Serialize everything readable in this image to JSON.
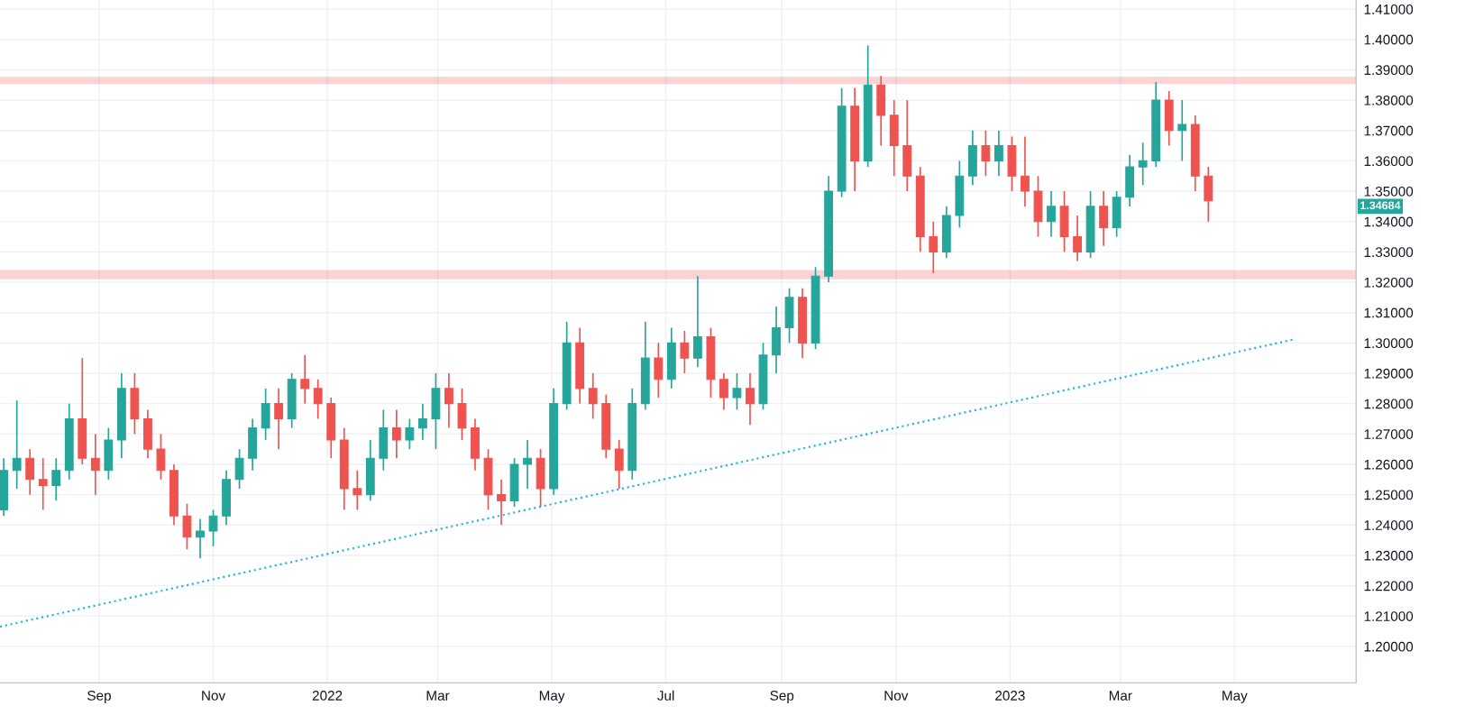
{
  "chart_data": {
    "type": "candlestick",
    "x": [
      "2021-07-12",
      "2021-07-19",
      "2021-07-26",
      "2021-08-02",
      "2021-08-09",
      "2021-08-16",
      "2021-08-23",
      "2021-08-30",
      "2021-09-06",
      "2021-09-13",
      "2021-09-20",
      "2021-09-27",
      "2021-10-04",
      "2021-10-11",
      "2021-10-18",
      "2021-10-25",
      "2021-11-01",
      "2021-11-08",
      "2021-11-15",
      "2021-11-22",
      "2021-11-29",
      "2021-12-06",
      "2021-12-13",
      "2021-12-20",
      "2021-12-27",
      "2022-01-03",
      "2022-01-10",
      "2022-01-17",
      "2022-01-24",
      "2022-01-31",
      "2022-02-07",
      "2022-02-14",
      "2022-02-21",
      "2022-02-28",
      "2022-03-07",
      "2022-03-14",
      "2022-03-21",
      "2022-03-28",
      "2022-04-04",
      "2022-04-11",
      "2022-04-18",
      "2022-04-25",
      "2022-05-02",
      "2022-05-09",
      "2022-05-16",
      "2022-05-23",
      "2022-05-30",
      "2022-06-06",
      "2022-06-13",
      "2022-06-20",
      "2022-06-27",
      "2022-07-04",
      "2022-07-11",
      "2022-07-18",
      "2022-07-25",
      "2022-08-01",
      "2022-08-08",
      "2022-08-15",
      "2022-08-22",
      "2022-08-29",
      "2022-09-05",
      "2022-09-12",
      "2022-09-19",
      "2022-09-26",
      "2022-10-03",
      "2022-10-10",
      "2022-10-17",
      "2022-10-24",
      "2022-10-31",
      "2022-11-07",
      "2022-11-14",
      "2022-11-21",
      "2022-11-28",
      "2022-12-05",
      "2022-12-12",
      "2022-12-19",
      "2022-12-26",
      "2023-01-02",
      "2023-01-09",
      "2023-01-16",
      "2023-01-23",
      "2023-01-30",
      "2023-02-06",
      "2023-02-13",
      "2023-02-20",
      "2023-02-27",
      "2023-03-06",
      "2023-03-13",
      "2023-03-20",
      "2023-03-27",
      "2023-04-03",
      "2023-04-10",
      "2023-04-17"
    ],
    "ohlc": [
      [
        1.245,
        1.262,
        1.243,
        1.258
      ],
      [
        1.258,
        1.281,
        1.252,
        1.262
      ],
      [
        1.262,
        1.265,
        1.25,
        1.255
      ],
      [
        1.255,
        1.262,
        1.245,
        1.253
      ],
      [
        1.253,
        1.262,
        1.248,
        1.258
      ],
      [
        1.258,
        1.28,
        1.255,
        1.275
      ],
      [
        1.275,
        1.295,
        1.26,
        1.262
      ],
      [
        1.262,
        1.27,
        1.25,
        1.258
      ],
      [
        1.258,
        1.272,
        1.255,
        1.268
      ],
      [
        1.268,
        1.29,
        1.262,
        1.285
      ],
      [
        1.285,
        1.29,
        1.27,
        1.275
      ],
      [
        1.275,
        1.278,
        1.262,
        1.265
      ],
      [
        1.265,
        1.27,
        1.255,
        1.258
      ],
      [
        1.258,
        1.26,
        1.24,
        1.243
      ],
      [
        1.243,
        1.247,
        1.232,
        1.236
      ],
      [
        1.236,
        1.242,
        1.229,
        1.238
      ],
      [
        1.238,
        1.245,
        1.233,
        1.243
      ],
      [
        1.243,
        1.258,
        1.24,
        1.255
      ],
      [
        1.255,
        1.265,
        1.252,
        1.262
      ],
      [
        1.262,
        1.275,
        1.258,
        1.272
      ],
      [
        1.272,
        1.285,
        1.268,
        1.28
      ],
      [
        1.28,
        1.285,
        1.265,
        1.275
      ],
      [
        1.275,
        1.29,
        1.272,
        1.288
      ],
      [
        1.288,
        1.296,
        1.28,
        1.285
      ],
      [
        1.285,
        1.288,
        1.275,
        1.28
      ],
      [
        1.28,
        1.282,
        1.262,
        1.268
      ],
      [
        1.268,
        1.272,
        1.245,
        1.252
      ],
      [
        1.252,
        1.258,
        1.245,
        1.25
      ],
      [
        1.25,
        1.268,
        1.248,
        1.262
      ],
      [
        1.262,
        1.278,
        1.258,
        1.272
      ],
      [
        1.272,
        1.278,
        1.262,
        1.268
      ],
      [
        1.268,
        1.275,
        1.265,
        1.272
      ],
      [
        1.272,
        1.28,
        1.268,
        1.275
      ],
      [
        1.275,
        1.29,
        1.265,
        1.285
      ],
      [
        1.285,
        1.29,
        1.272,
        1.28
      ],
      [
        1.28,
        1.285,
        1.268,
        1.272
      ],
      [
        1.272,
        1.275,
        1.258,
        1.262
      ],
      [
        1.262,
        1.265,
        1.245,
        1.25
      ],
      [
        1.25,
        1.255,
        1.24,
        1.248
      ],
      [
        1.248,
        1.262,
        1.246,
        1.26
      ],
      [
        1.26,
        1.268,
        1.252,
        1.262
      ],
      [
        1.262,
        1.265,
        1.246,
        1.252
      ],
      [
        1.252,
        1.285,
        1.25,
        1.28
      ],
      [
        1.28,
        1.307,
        1.278,
        1.3
      ],
      [
        1.3,
        1.305,
        1.28,
        1.285
      ],
      [
        1.285,
        1.29,
        1.275,
        1.28
      ],
      [
        1.28,
        1.283,
        1.262,
        1.265
      ],
      [
        1.265,
        1.268,
        1.252,
        1.258
      ],
      [
        1.258,
        1.285,
        1.255,
        1.28
      ],
      [
        1.28,
        1.307,
        1.278,
        1.295
      ],
      [
        1.295,
        1.3,
        1.282,
        1.288
      ],
      [
        1.288,
        1.305,
        1.285,
        1.3
      ],
      [
        1.3,
        1.304,
        1.29,
        1.295
      ],
      [
        1.295,
        1.322,
        1.292,
        1.302
      ],
      [
        1.302,
        1.305,
        1.282,
        1.288
      ],
      [
        1.288,
        1.29,
        1.278,
        1.282
      ],
      [
        1.282,
        1.29,
        1.278,
        1.285
      ],
      [
        1.285,
        1.29,
        1.273,
        1.28
      ],
      [
        1.28,
        1.3,
        1.278,
        1.296
      ],
      [
        1.296,
        1.312,
        1.29,
        1.305
      ],
      [
        1.305,
        1.318,
        1.3,
        1.315
      ],
      [
        1.315,
        1.318,
        1.295,
        1.3
      ],
      [
        1.3,
        1.325,
        1.298,
        1.322
      ],
      [
        1.322,
        1.355,
        1.32,
        1.35
      ],
      [
        1.35,
        1.384,
        1.348,
        1.378
      ],
      [
        1.378,
        1.384,
        1.35,
        1.36
      ],
      [
        1.36,
        1.398,
        1.358,
        1.385
      ],
      [
        1.385,
        1.388,
        1.365,
        1.375
      ],
      [
        1.375,
        1.38,
        1.355,
        1.365
      ],
      [
        1.365,
        1.38,
        1.35,
        1.355
      ],
      [
        1.355,
        1.358,
        1.33,
        1.335
      ],
      [
        1.335,
        1.34,
        1.323,
        1.33
      ],
      [
        1.33,
        1.345,
        1.328,
        1.342
      ],
      [
        1.342,
        1.36,
        1.338,
        1.355
      ],
      [
        1.355,
        1.37,
        1.352,
        1.365
      ],
      [
        1.365,
        1.37,
        1.355,
        1.36
      ],
      [
        1.36,
        1.37,
        1.355,
        1.365
      ],
      [
        1.365,
        1.368,
        1.35,
        1.355
      ],
      [
        1.355,
        1.368,
        1.345,
        1.35
      ],
      [
        1.35,
        1.355,
        1.335,
        1.34
      ],
      [
        1.34,
        1.35,
        1.335,
        1.345
      ],
      [
        1.345,
        1.35,
        1.33,
        1.335
      ],
      [
        1.335,
        1.342,
        1.327,
        1.33
      ],
      [
        1.33,
        1.35,
        1.328,
        1.345
      ],
      [
        1.345,
        1.35,
        1.332,
        1.338
      ],
      [
        1.338,
        1.35,
        1.335,
        1.348
      ],
      [
        1.348,
        1.362,
        1.345,
        1.358
      ],
      [
        1.358,
        1.366,
        1.352,
        1.36
      ],
      [
        1.36,
        1.386,
        1.358,
        1.38
      ],
      [
        1.38,
        1.383,
        1.365,
        1.37
      ],
      [
        1.37,
        1.38,
        1.36,
        1.372
      ],
      [
        1.372,
        1.375,
        1.35,
        1.355
      ],
      [
        1.355,
        1.358,
        1.34,
        1.3468
      ]
    ],
    "colors": [
      "#26a69a",
      "#26a69a",
      "#ef5350",
      "#ef5350",
      "#26a69a",
      "#26a69a",
      "#ef5350",
      "#ef5350",
      "#26a69a",
      "#26a69a",
      "#ef5350",
      "#ef5350",
      "#ef5350",
      "#ef5350",
      "#ef5350",
      "#26a69a",
      "#26a69a",
      "#26a69a",
      "#26a69a",
      "#26a69a",
      "#26a69a",
      "#ef5350",
      "#26a69a",
      "#ef5350",
      "#ef5350",
      "#ef5350",
      "#ef5350",
      "#ef5350",
      "#26a69a",
      "#26a69a",
      "#ef5350",
      "#26a69a",
      "#26a69a",
      "#26a69a",
      "#ef5350",
      "#ef5350",
      "#ef5350",
      "#ef5350",
      "#ef5350",
      "#26a69a",
      "#26a69a",
      "#ef5350",
      "#26a69a",
      "#26a69a",
      "#ef5350",
      "#ef5350",
      "#ef5350",
      "#ef5350",
      "#26a69a",
      "#26a69a",
      "#ef5350",
      "#26a69a",
      "#ef5350",
      "#26a69a",
      "#ef5350",
      "#ef5350",
      "#26a69a",
      "#ef5350",
      "#26a69a",
      "#26a69a",
      "#26a69a",
      "#ef5350",
      "#26a69a",
      "#26a69a",
      "#26a69a",
      "#ef5350",
      "#26a69a",
      "#ef5350",
      "#ef5350",
      "#ef5350",
      "#ef5350",
      "#ef5350",
      "#26a69a",
      "#26a69a",
      "#26a69a",
      "#ef5350",
      "#26a69a",
      "#ef5350",
      "#ef5350",
      "#ef5350",
      "#26a69a",
      "#ef5350",
      "#ef5350",
      "#26a69a",
      "#ef5350",
      "#26a69a",
      "#26a69a",
      "#26a69a",
      "#26a69a",
      "#ef5350",
      "#26a69a",
      "#ef5350",
      "#ef5350"
    ],
    "series": [
      {
        "type": "line",
        "x": [
          "2021-07-10",
          "2023-06-02"
        ],
        "values": [
          1.2065,
          1.3012
        ],
        "color": "#2fb8d6",
        "line_style": "dotted"
      }
    ],
    "bands": [
      {
        "axis": "y",
        "from": 1.3855,
        "to": 1.3875,
        "color": "#ef5350"
      },
      {
        "axis": "y",
        "from": 1.3212,
        "to": 1.3238,
        "color": "#ef5350"
      }
    ],
    "annotations": [
      "1.34684"
    ],
    "xlim": [
      "2021-07-10",
      "2023-07-05"
    ],
    "xticks": [
      {
        "value": "2021-09-01",
        "label": "Sep"
      },
      {
        "value": "2021-11-01",
        "label": "Nov"
      },
      {
        "value": "2022-01-01",
        "label": "2022"
      },
      {
        "value": "2022-03-01",
        "label": "Mar"
      },
      {
        "value": "2022-05-01",
        "label": "May"
      },
      {
        "value": "2022-07-01",
        "label": "Jul"
      },
      {
        "value": "2022-09-01",
        "label": "Sep"
      },
      {
        "value": "2022-11-01",
        "label": "Nov"
      },
      {
        "value": "2023-01-01",
        "label": "2023"
      },
      {
        "value": "2023-03-01",
        "label": "Mar"
      },
      {
        "value": "2023-05-01",
        "label": "May"
      }
    ],
    "ylim": [
      1.188,
      1.413
    ],
    "yticks": [
      {
        "value": 1.2,
        "label": "1.20000"
      },
      {
        "value": 1.21,
        "label": "1.21000"
      },
      {
        "value": 1.22,
        "label": "1.22000"
      },
      {
        "value": 1.23,
        "label": "1.23000"
      },
      {
        "value": 1.24,
        "label": "1.24000"
      },
      {
        "value": 1.25,
        "label": "1.25000"
      },
      {
        "value": 1.26,
        "label": "1.26000"
      },
      {
        "value": 1.27,
        "label": "1.27000"
      },
      {
        "value": 1.28,
        "label": "1.28000"
      },
      {
        "value": 1.29,
        "label": "1.29000"
      },
      {
        "value": 1.3,
        "label": "1.30000"
      },
      {
        "value": 1.31,
        "label": "1.31000"
      },
      {
        "value": 1.32,
        "label": "1.32000"
      },
      {
        "value": 1.33,
        "label": "1.33000"
      },
      {
        "value": 1.34,
        "label": "1.34000"
      },
      {
        "value": 1.35,
        "label": "1.35000"
      },
      {
        "value": 1.36,
        "label": "1.36000"
      },
      {
        "value": 1.37,
        "label": "1.37000"
      },
      {
        "value": 1.38,
        "label": "1.38000"
      },
      {
        "value": 1.39,
        "label": "1.39000"
      },
      {
        "value": 1.4,
        "label": "1.40000"
      },
      {
        "value": 1.41,
        "label": "1.41000"
      }
    ],
    "grid": true
  }
}
